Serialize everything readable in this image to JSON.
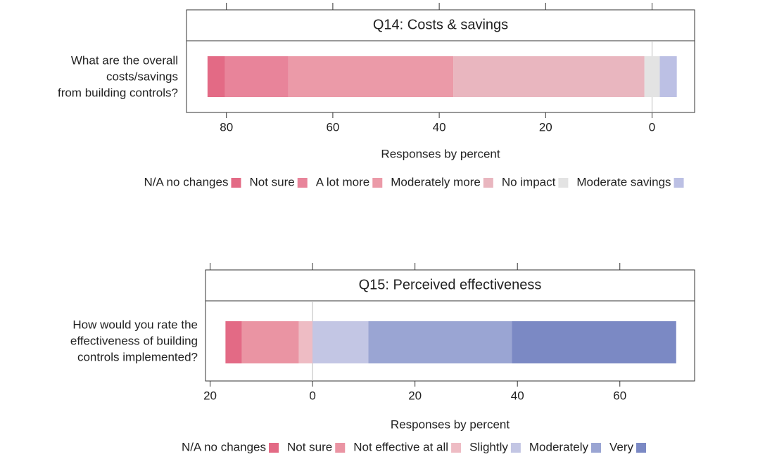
{
  "chart_data": [
    {
      "type": "bar",
      "orientation": "horizontal",
      "title": "Q14: Costs & savings",
      "question": [
        "What are the overall",
        "costs/savings",
        "from building controls?"
      ],
      "xlabel": "Responses by percent",
      "xlim": [
        -8,
        87.5
      ],
      "xreverse": true,
      "xticks": [
        80,
        60,
        40,
        20,
        0
      ],
      "center": "No impact",
      "legend": "bottom",
      "series": [
        {
          "name": "N/A no changes",
          "color": "#e36a85",
          "values": [
            3.3
          ]
        },
        {
          "name": "Not sure",
          "color": "#e8849a",
          "values": [
            11.9
          ]
        },
        {
          "name": "A lot more",
          "color": "#eb9aa8",
          "values": [
            31
          ]
        },
        {
          "name": "Moderately more",
          "color": "#e9b6bf",
          "values": [
            35.9
          ]
        },
        {
          "name": "No impact",
          "color": "#e3e3e3",
          "values": [
            2.9
          ]
        },
        {
          "name": "Moderate savings",
          "color": "#bcc0e4",
          "values": [
            -3.2
          ]
        }
      ]
    },
    {
      "type": "bar",
      "orientation": "horizontal",
      "title": "Q15: Perceived effectiveness",
      "question": [
        "How would you rate the",
        "effectiveness of building",
        "controls implemented?"
      ],
      "xlabel": "Responses by percent",
      "xlim": [
        -20.9,
        74.6
      ],
      "xticks": [
        {
          "value": -20,
          "label": "20"
        },
        0,
        20,
        40,
        60
      ],
      "legend": "bottom",
      "series": [
        {
          "name": "N/A no changes",
          "color": "#e36a85",
          "values": [
            -3.2
          ]
        },
        {
          "name": "Not sure",
          "color": "#ea94a3",
          "values": [
            -11.1
          ]
        },
        {
          "name": "Not effective at all",
          "color": "#eebcc4",
          "values": [
            -2.7
          ]
        },
        {
          "name": "Slightly",
          "color": "#c3c6e4",
          "values": [
            10.9
          ]
        },
        {
          "name": "Moderately",
          "color": "#9aa5d3",
          "values": [
            28
          ]
        },
        {
          "name": "Very",
          "color": "#7b89c4",
          "values": [
            32.1
          ]
        }
      ]
    }
  ]
}
